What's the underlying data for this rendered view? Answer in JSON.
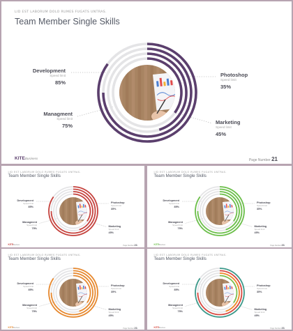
{
  "slides": [
    {
      "subtitle": "LID EST LABORUM DOLO RUMES FUGATS UNTRAS.",
      "title": "Team Member Single Skills",
      "accent": "#5b3f6d",
      "skills": [
        {
          "name": "Development",
          "sub": "Speed limit",
          "percent": "85%",
          "value": 85
        },
        {
          "name": "Photoshop",
          "sub": "Speed limit",
          "percent": "35%",
          "value": 35
        },
        {
          "name": "Managment",
          "sub": "Speed limit",
          "percent": "75%",
          "value": 75
        },
        {
          "name": "Marketing",
          "sub": "Speed limit",
          "percent": "45%",
          "value": 45
        }
      ],
      "logo": {
        "brand": "KITE",
        "suffix": "Business"
      },
      "page_label": "Page Number",
      "page_number": "21"
    },
    {
      "subtitle": "LID EST LABORUM DOLO RUMES FUGATS UNTRAS.",
      "title": "Team Member Single Skills",
      "accent": "#c7433e",
      "skills": [
        {
          "name": "Development",
          "sub": "Speed limit",
          "percent": "85%",
          "value": 85
        },
        {
          "name": "Photoshop",
          "sub": "Speed limit",
          "percent": "35%",
          "value": 35
        },
        {
          "name": "Managment",
          "sub": "Speed limit",
          "percent": "75%",
          "value": 75
        },
        {
          "name": "Marketing",
          "sub": "Speed limit",
          "percent": "45%",
          "value": 45
        }
      ],
      "logo": {
        "brand": "KITE",
        "suffix": "Business"
      },
      "page_label": "Page Number",
      "page_number": "21"
    },
    {
      "subtitle": "LID EST LABORUM DOLO RUMES FUGATS UNTRAS.",
      "title": "Team Member Single Skills",
      "accent": "#6cc04a",
      "skills": [
        {
          "name": "Development",
          "sub": "Speed limit",
          "percent": "85%",
          "value": 85
        },
        {
          "name": "Photoshop",
          "sub": "Speed limit",
          "percent": "35%",
          "value": 35
        },
        {
          "name": "Managment",
          "sub": "Speed limit",
          "percent": "75%",
          "value": 75
        },
        {
          "name": "Marketing",
          "sub": "Speed limit",
          "percent": "45%",
          "value": 45
        }
      ],
      "logo": {
        "brand": "KITE",
        "suffix": "Business"
      },
      "page_label": "Page Number",
      "page_number": "21"
    },
    {
      "subtitle": "LID EST LABORUM DOLO RUMES FUGATS UNTRAS.",
      "title": "Team Member Single Skills",
      "accent": "#e8892e",
      "skills": [
        {
          "name": "Development",
          "sub": "Speed limit",
          "percent": "85%",
          "value": 85
        },
        {
          "name": "Photoshop",
          "sub": "Speed limit",
          "percent": "35%",
          "value": 35
        },
        {
          "name": "Managment",
          "sub": "Speed limit",
          "percent": "75%",
          "value": 75
        },
        {
          "name": "Marketing",
          "sub": "Speed limit",
          "percent": "45%",
          "value": 45
        }
      ],
      "logo": {
        "brand": "KITE",
        "suffix": "Business"
      },
      "page_label": "Page Number",
      "page_number": "21"
    },
    {
      "subtitle": "LID EST LABORUM DOLO RUMES FUGATS UNTRAS.",
      "title": "Team Member Single Skills",
      "accent": "#d9483f",
      "ring_colors": [
        "#3d9a8b",
        "#d9483f",
        "#f08a2c",
        "#7ac04e"
      ],
      "skills": [
        {
          "name": "Development",
          "sub": "Speed limit",
          "percent": "85%",
          "value": 85
        },
        {
          "name": "Photoshop",
          "sub": "Speed limit",
          "percent": "35%",
          "value": 35
        },
        {
          "name": "Managment",
          "sub": "Speed limit",
          "percent": "75%",
          "value": 75
        },
        {
          "name": "Marketing",
          "sub": "Speed limit",
          "percent": "45%",
          "value": 45
        }
      ],
      "logo": {
        "brand": "KITE",
        "suffix": "Business"
      },
      "page_label": "Page Number",
      "page_number": "21"
    }
  ]
}
